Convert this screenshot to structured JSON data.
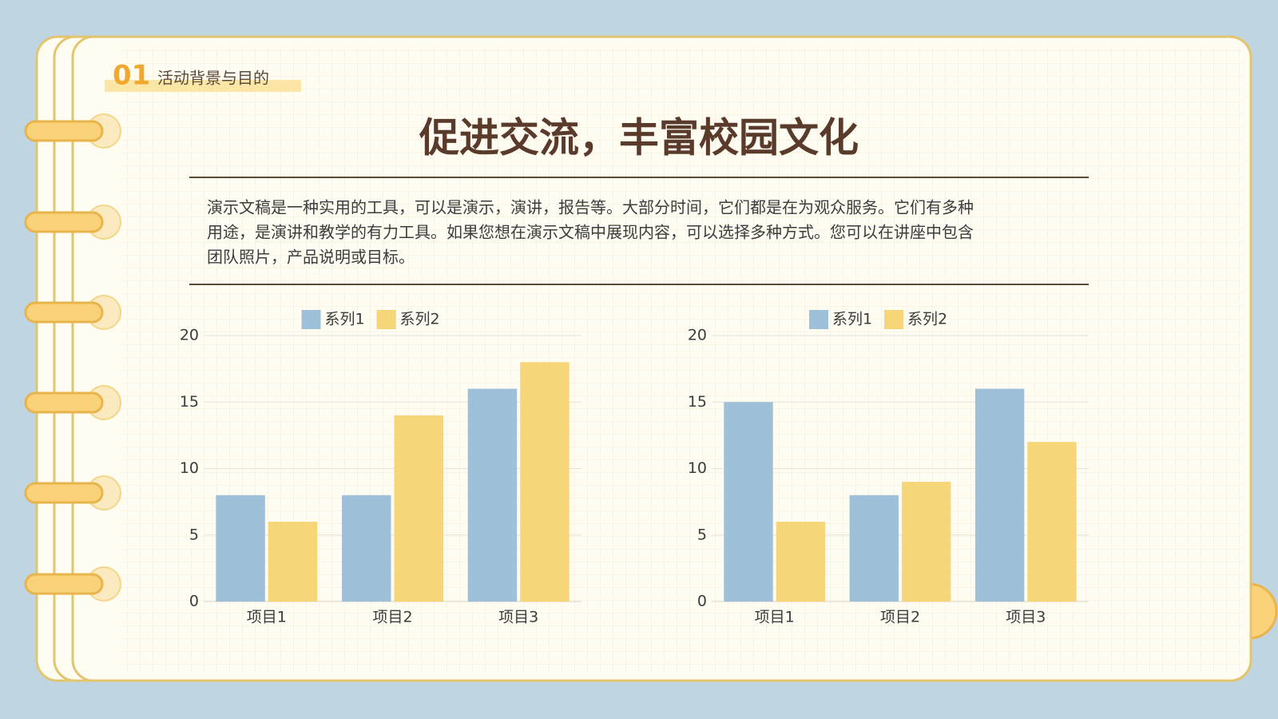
{
  "header": {
    "number": "01",
    "section": "活动背景与目的",
    "title": "促进交流，丰富校园文化",
    "paragraph": [
      "演示文稿是一种实用的工具，可以是演示，演讲，报告等。大部分时间，它们都是在为观众服务。它们有多种",
      "用途，是演讲和教学的有力工具。如果您想在演示文稿中展现内容，可以选择多种方式。您可以在讲座中包含",
      "团队照片，产品说明或目标。"
    ]
  },
  "chart_data": [
    {
      "type": "bar",
      "categories": [
        "项目1",
        "项目2",
        "项目3"
      ],
      "series": [
        {
          "name": "系列1",
          "color": "#9fc0d9",
          "values": [
            8,
            8,
            16
          ]
        },
        {
          "name": "系列2",
          "color": "#f7d67a",
          "values": [
            6,
            14,
            18
          ]
        }
      ],
      "ylim": [
        0,
        20
      ],
      "yticks": [
        0,
        5,
        10,
        15,
        20
      ],
      "grid": true,
      "legend": "top"
    },
    {
      "type": "bar",
      "categories": [
        "项目1",
        "项目2",
        "项目3"
      ],
      "series": [
        {
          "name": "系列1",
          "color": "#9fc0d9",
          "values": [
            15,
            8,
            16
          ]
        },
        {
          "name": "系列2",
          "color": "#f7d67a",
          "values": [
            6,
            9,
            12
          ]
        }
      ],
      "ylim": [
        0,
        20
      ],
      "yticks": [
        0,
        5,
        10,
        15,
        20
      ],
      "grid": true,
      "legend": "top"
    }
  ]
}
